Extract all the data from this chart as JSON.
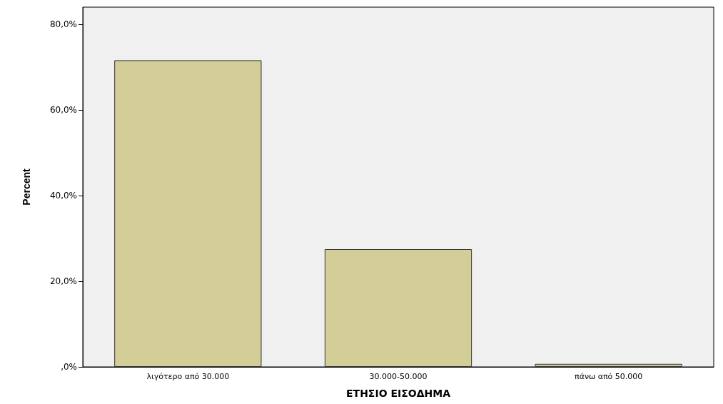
{
  "chart_data": {
    "type": "bar",
    "xlabel": "ΕΤΗΣΙΟ ΕΙΣΟΔΗΜΑ",
    "ylabel": "Percent",
    "categories": [
      "λιγότερο από 30.000",
      "30.000-50.000",
      "πάνω από 50.000"
    ],
    "values": [
      71.6,
      27.5,
      0.7
    ],
    "color": "#d3ce97",
    "ylim": [
      0,
      84
    ],
    "yticks": [
      {
        "value": 0,
        "label": ",0%"
      },
      {
        "value": 20,
        "label": "20,0%"
      },
      {
        "value": 40,
        "label": "40,0%"
      },
      {
        "value": 60,
        "label": "60,0%"
      },
      {
        "value": 80,
        "label": "80,0%"
      }
    ],
    "grid": false
  }
}
